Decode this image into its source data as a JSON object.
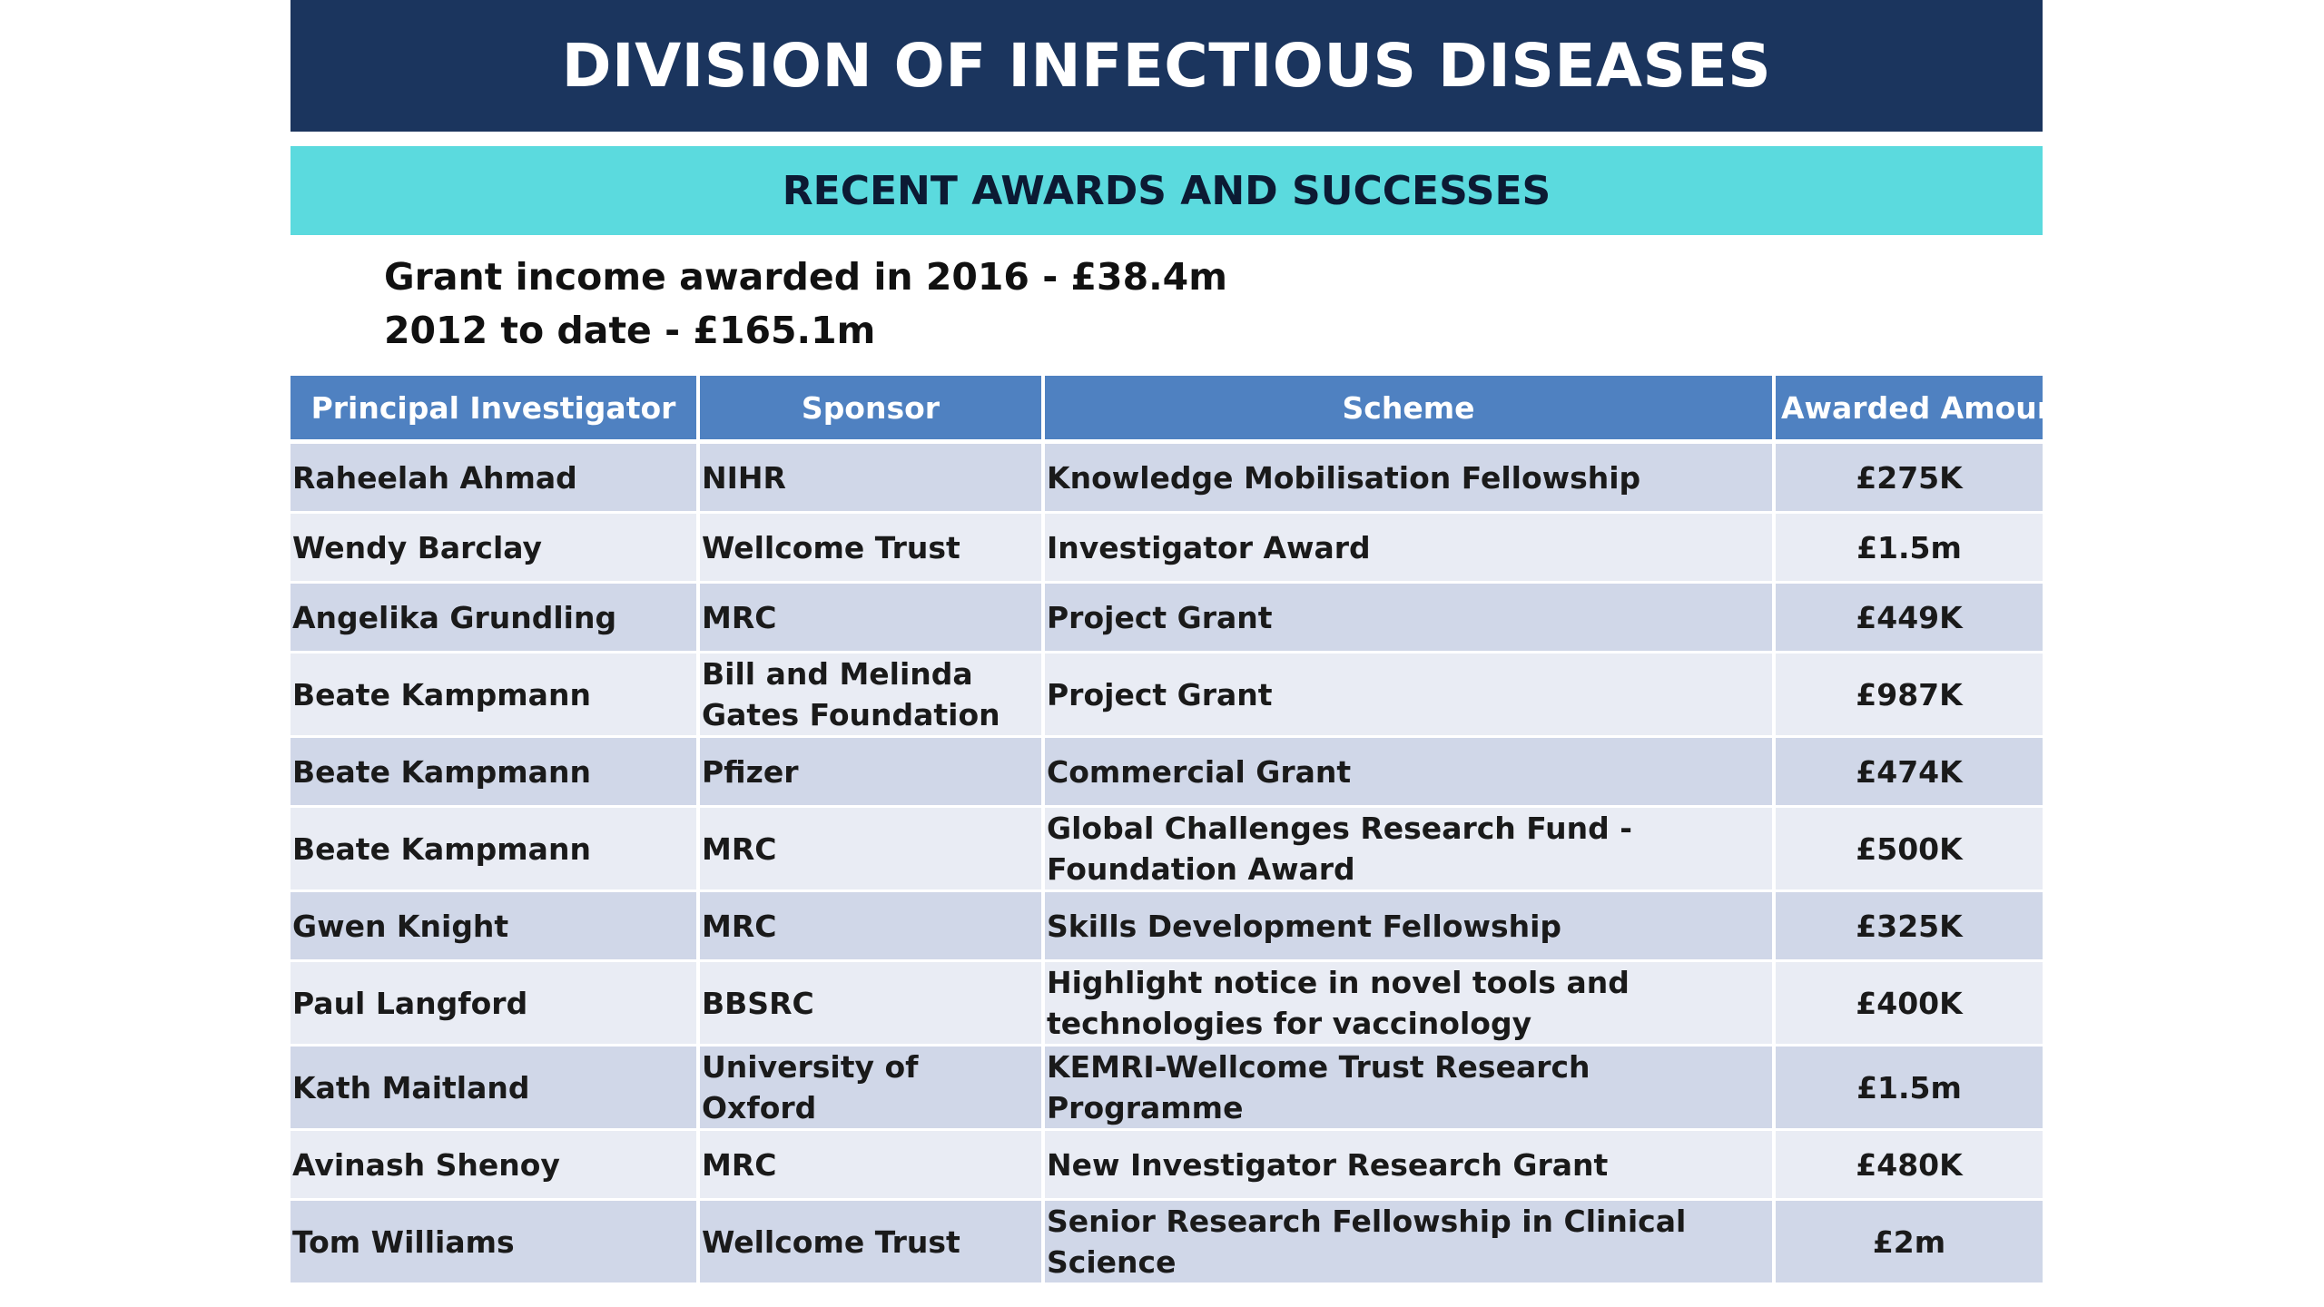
{
  "colors": {
    "title_bg": "#1b355e",
    "subtitle_bg": "#5bdade",
    "header_bg": "#4f81c1",
    "row_odd": "#d0d7e8",
    "row_even": "#e9ecf4"
  },
  "title": "DIVISION OF INFECTIOUS DISEASES",
  "subtitle": "RECENT AWARDS AND SUCCESSES",
  "income": {
    "line1": "Grant income awarded in 2016 - £38.4m",
    "line2": "2012 to date - £165.1m"
  },
  "table": {
    "headers": [
      "Principal Investigator",
      "Sponsor",
      "Scheme",
      "Awarded Amount"
    ],
    "rows": [
      {
        "pi": "Raheelah Ahmad",
        "sponsor": "NIHR",
        "scheme": "Knowledge Mobilisation Fellowship",
        "amount": "£275K"
      },
      {
        "pi": "Wendy Barclay",
        "sponsor": "Wellcome Trust",
        "scheme": "Investigator Award",
        "amount": "£1.5m"
      },
      {
        "pi": "Angelika Grundling",
        "sponsor": "MRC",
        "scheme": "Project Grant",
        "amount": "£449K"
      },
      {
        "pi": "Beate Kampmann",
        "sponsor": "Bill and Melinda Gates Foundation",
        "scheme": "Project Grant",
        "amount": "£987K"
      },
      {
        "pi": "Beate Kampmann",
        "sponsor": "Pfizer",
        "scheme": "Commercial Grant",
        "amount": "£474K"
      },
      {
        "pi": "Beate Kampmann",
        "sponsor": "MRC",
        "scheme": "Global Challenges Research Fund - Foundation Award",
        "amount": "£500K"
      },
      {
        "pi": "Gwen Knight",
        "sponsor": "MRC",
        "scheme": "Skills Development Fellowship",
        "amount": "£325K"
      },
      {
        "pi": "Paul Langford",
        "sponsor": "BBSRC",
        "scheme": "Highlight notice in novel tools and technologies for vaccinology",
        "amount": "£400K"
      },
      {
        "pi": "Kath Maitland",
        "sponsor": "University of Oxford",
        "scheme": "KEMRI-Wellcome Trust Research Programme",
        "amount": "£1.5m"
      },
      {
        "pi": "Avinash Shenoy",
        "sponsor": "MRC",
        "scheme": "New Investigator Research Grant",
        "amount": "£480K"
      },
      {
        "pi": "Tom Williams",
        "sponsor": "Wellcome Trust",
        "scheme": "Senior Research Fellowship in Clinical Science",
        "amount": "£2m"
      }
    ]
  }
}
